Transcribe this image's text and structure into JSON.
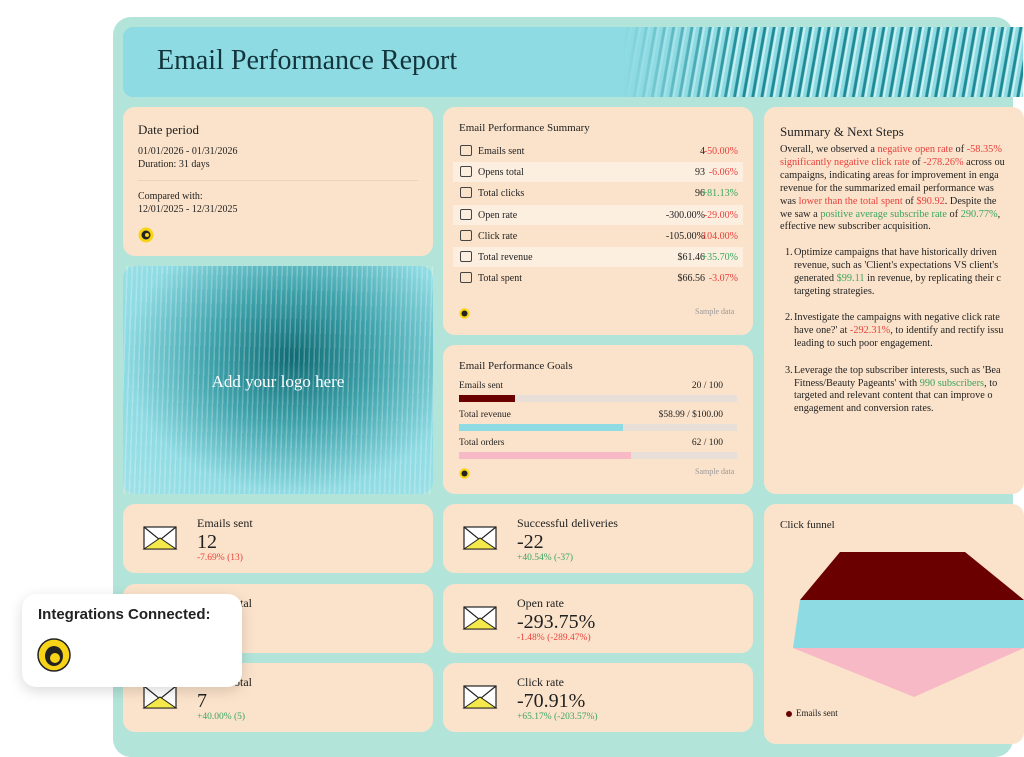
{
  "header": {
    "title": "Email Performance Report"
  },
  "date_period": {
    "title": "Date period",
    "range": "01/01/2026 - 01/31/2026",
    "duration": "Duration: 31 days",
    "compared_label": "Compared with:",
    "compared_range": "12/01/2025 - 12/31/2025"
  },
  "logo_placeholder": {
    "text": "Add your logo here"
  },
  "summary": {
    "title": "Email Performance Summary",
    "note": "Sample data",
    "rows": [
      {
        "label": "Emails sent",
        "value": "4",
        "change": "-50.00%",
        "change_color": "#e8413c"
      },
      {
        "label": "Opens total",
        "value": "93",
        "change": "-6.06%",
        "change_color": "#e8413c"
      },
      {
        "label": "Total clicks",
        "value": "96",
        "change": "+81.13%",
        "change_color": "#3aa55d"
      },
      {
        "label": "Open rate",
        "value": "-300.00%",
        "change": "-29.00%",
        "change_color": "#e8413c"
      },
      {
        "label": "Click rate",
        "value": "-105.00%",
        "change": "-104.00%",
        "change_color": "#e8413c"
      },
      {
        "label": "Total revenue",
        "value": "$61.46",
        "change": "+35.70%",
        "change_color": "#3aa55d"
      },
      {
        "label": "Total spent",
        "value": "$66.56",
        "change": "-3.07%",
        "change_color": "#e8413c"
      }
    ]
  },
  "goals": {
    "title": "Email Performance Goals",
    "note": "Sample data",
    "items": [
      {
        "label": "Emails sent",
        "progress": "20 / 100",
        "value": 20,
        "target": 100,
        "color": "#6b0000"
      },
      {
        "label": "Total revenue",
        "progress": "$58.99 / $100.00",
        "value": 58.99,
        "target": 100,
        "color": "#8fdbe3"
      },
      {
        "label": "Total orders",
        "progress": "62 / 100",
        "value": 62,
        "target": 100,
        "color": "#f8b9c6"
      }
    ]
  },
  "next_steps": {
    "title": "Summary & Next Steps",
    "intro": [
      [
        "Overall, we observed a ",
        {
          "text": "negative open rate",
          "color": "#e8413c"
        },
        " of ",
        {
          "text": "-58.35%",
          "color": "#e8413c"
        }
      ],
      [
        {
          "text": "significantly negative click rate",
          "color": "#e8413c"
        },
        " of ",
        {
          "text": "-278.26%",
          "color": "#e8413c"
        },
        " across ou"
      ],
      [
        "campaigns, indicating areas for improvement in enga"
      ],
      [
        "revenue for the summarized email performance was"
      ],
      [
        "was ",
        {
          "text": "lower than the total spent",
          "color": "#e8413c"
        },
        " of ",
        {
          "text": "$90.92",
          "color": "#e8413c"
        },
        ". Despite the"
      ],
      [
        "we saw a ",
        {
          "text": "positive average subscribe rate",
          "color": "#3aa55d"
        },
        " of ",
        {
          "text": "290.77%",
          "color": "#3aa55d"
        },
        ","
      ],
      [
        "effective new subscriber acquisition."
      ]
    ],
    "items": [
      {
        "marker": "1.",
        "lines": [
          [
            "Optimize campaigns that have historically driven"
          ],
          [
            "revenue, such as 'Client's expectations VS client's"
          ],
          [
            "generated ",
            {
              "text": "$99.11",
              "color": "#3aa55d"
            },
            " in revenue, by replicating their c"
          ],
          [
            "targeting strategies."
          ]
        ]
      },
      {
        "marker": "2.",
        "lines": [
          [
            "Investigate the campaigns with negative click rate"
          ],
          [
            "have one?' at ",
            {
              "text": "-292.31%",
              "color": "#e8413c"
            },
            ", to identify and rectify issu"
          ],
          [
            "leading to such poor engagement."
          ]
        ]
      },
      {
        "marker": "3.",
        "lines": [
          [
            "Leverage the top subscriber interests, such as 'Bea"
          ],
          [
            "Fitness/Beauty Pageants' with ",
            {
              "text": "990 subscribers",
              "color": "#3aa55d"
            },
            ", to"
          ],
          [
            "targeted and relevant content that can improve o"
          ],
          [
            "engagement and conversion rates."
          ]
        ]
      }
    ]
  },
  "kpis": [
    {
      "label": "Emails sent",
      "value": "12",
      "change": "-7.69% (13)",
      "change_color": "#e8413c"
    },
    {
      "label": "Successful deliveries",
      "value": "-22",
      "change": "+40.54% (-37)",
      "change_color": "#3aa55d"
    },
    {
      "label": "Opens total"
    },
    {
      "label": "Open rate",
      "value": "-293.75%",
      "change": "-1.48% (-289.47%)",
      "change_color": "#e8413c"
    },
    {
      "label": "Clicks total",
      "value": "7",
      "change": "+40.00% (5)",
      "change_color": "#3aa55d"
    },
    {
      "label": "Click rate",
      "value": "-70.91%",
      "change": "+65.17% (-203.57%)",
      "change_color": "#3aa55d"
    }
  ],
  "funnel": {
    "title": "Click funnel",
    "legend": [
      {
        "name": "Emails sent",
        "color": "#6b0000"
      }
    ]
  },
  "integrations": {
    "title": "Integrations Connected:"
  }
}
